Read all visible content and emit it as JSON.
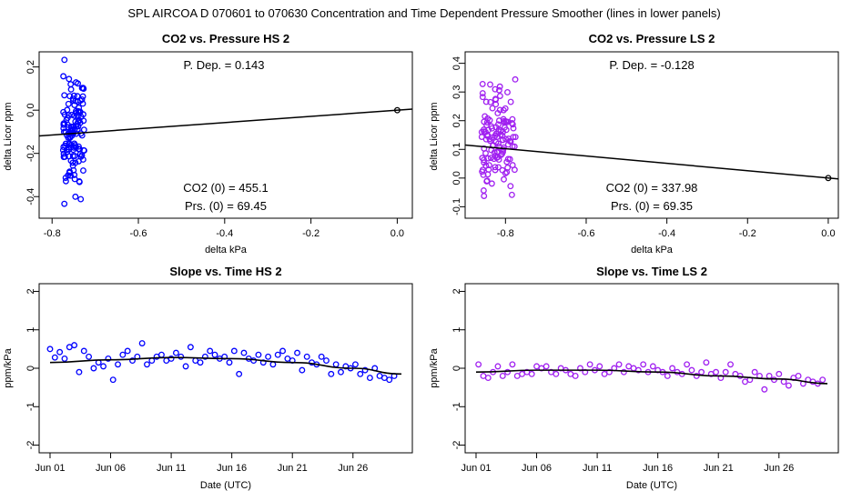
{
  "suptitle": "SPL   AIRCOA D   070601 to 070630   Concentration and Time Dependent Pressure Smoother (lines in lower panels)",
  "colors": {
    "hs": "#0000ff",
    "ls": "#a020f0",
    "line": "#000000"
  },
  "chart_data": [
    {
      "id": "p1",
      "type": "scatter",
      "title": "CO2 vs. Pressure HS 2",
      "xlabel": "delta kPa",
      "ylabel": "delta Licor ppm",
      "xlim": [
        -0.83,
        0.035
      ],
      "ylim": [
        -0.5,
        0.27
      ],
      "xticks": [
        -0.8,
        -0.6,
        -0.4,
        -0.2,
        0.0
      ],
      "xtick_labels": [
        "-0.8",
        "-0.6",
        "-0.4",
        "-0.2",
        "0.0"
      ],
      "yticks": [
        -0.4,
        -0.2,
        0.0,
        0.2
      ],
      "ytick_labels": [
        "-0.4",
        "-0.2",
        "0.0",
        "0.2"
      ],
      "series_color": "hs",
      "cluster": {
        "x_min": -0.775,
        "x_max": -0.725,
        "y_min": -0.47,
        "y_max": 0.25,
        "n": 130,
        "seed": 11
      },
      "origin_point": [
        0.0,
        0.0
      ],
      "fit_line": [
        [
          -0.83,
          -0.119
        ],
        [
          0.035,
          0.005
        ]
      ],
      "annotations": {
        "pdep": "P. Dep. =  0.143",
        "co2": "CO2 (0) =  455.1",
        "prs": "Prs. (0) =  69.45"
      }
    },
    {
      "id": "p2",
      "type": "scatter",
      "title": "CO2 vs. Pressure LS 2",
      "xlabel": "delta kPa",
      "ylabel": "delta Licor ppm",
      "xlim": [
        -0.9,
        0.025
      ],
      "ylim": [
        -0.14,
        0.44
      ],
      "xticks": [
        -0.8,
        -0.6,
        -0.4,
        -0.2,
        0.0
      ],
      "xtick_labels": [
        "-0.8",
        "-0.6",
        "-0.4",
        "-0.2",
        "0.0"
      ],
      "yticks": [
        -0.1,
        0.0,
        0.1,
        0.2,
        0.3,
        0.4
      ],
      "ytick_labels": [
        "-0.1",
        "0.0",
        "0.1",
        "0.2",
        "0.3",
        "0.4"
      ],
      "series_color": "ls",
      "cluster": {
        "x_min": -0.86,
        "x_max": -0.775,
        "y_min": -0.13,
        "y_max": 0.42,
        "n": 130,
        "seed": 23
      },
      "origin_point": [
        0.0,
        0.0
      ],
      "fit_line": [
        [
          -0.9,
          0.115
        ],
        [
          0.025,
          -0.003
        ]
      ],
      "annotations": {
        "pdep": "P. Dep. =  -0.128",
        "co2": "CO2 (0) =  337.98",
        "prs": "Prs. (0) =  69.35"
      }
    },
    {
      "id": "p3",
      "type": "scatter",
      "title": "Slope vs. Time HS 2",
      "xlabel": "Date (UTC)",
      "ylabel": "ppm/kPa",
      "xlim": [
        0.1,
        30.9
      ],
      "ylim": [
        -2.2,
        2.2
      ],
      "xticks": [
        1,
        6,
        11,
        16,
        21,
        26
      ],
      "xtick_labels": [
        "Jun 01",
        "Jun 06",
        "Jun 11",
        "Jun 16",
        "Jun 21",
        "Jun 26"
      ],
      "yticks": [
        -2,
        -1,
        0,
        1,
        2
      ],
      "ytick_labels": [
        "-2",
        "-1",
        "0",
        "1",
        "2"
      ],
      "series_color": "hs",
      "x": [
        1.0,
        1.4,
        1.8,
        2.2,
        2.6,
        3.0,
        3.4,
        3.8,
        4.2,
        4.6,
        5.0,
        5.4,
        5.8,
        6.2,
        6.6,
        7.0,
        7.4,
        7.8,
        8.2,
        8.6,
        9.0,
        9.4,
        9.8,
        10.2,
        10.6,
        11.0,
        11.4,
        11.8,
        12.2,
        12.6,
        13.0,
        13.4,
        13.8,
        14.2,
        14.6,
        15.0,
        15.4,
        15.8,
        16.2,
        16.6,
        17.0,
        17.4,
        17.8,
        18.2,
        18.6,
        19.0,
        19.4,
        19.8,
        20.2,
        20.6,
        21.0,
        21.4,
        21.8,
        22.2,
        22.6,
        23.0,
        23.4,
        23.8,
        24.2,
        24.6,
        25.0,
        25.4,
        25.8,
        26.2,
        26.6,
        27.0,
        27.4,
        27.8,
        28.2,
        28.6,
        29.0,
        29.4
      ],
      "y": [
        0.5,
        0.28,
        0.42,
        0.25,
        0.55,
        0.6,
        -0.1,
        0.45,
        0.3,
        0.0,
        0.15,
        0.05,
        0.25,
        -0.3,
        0.1,
        0.35,
        0.45,
        0.2,
        0.3,
        0.65,
        0.1,
        0.2,
        0.3,
        0.35,
        0.2,
        0.25,
        0.4,
        0.3,
        0.05,
        0.55,
        0.2,
        0.15,
        0.3,
        0.45,
        0.35,
        0.25,
        0.3,
        0.15,
        0.45,
        -0.15,
        0.4,
        0.25,
        0.2,
        0.35,
        0.15,
        0.3,
        0.1,
        0.35,
        0.45,
        0.25,
        0.2,
        0.4,
        -0.05,
        0.3,
        0.15,
        0.1,
        0.3,
        0.2,
        -0.15,
        0.1,
        -0.1,
        0.05,
        0.0,
        0.1,
        -0.15,
        -0.05,
        -0.25,
        0.0,
        -0.2,
        -0.25,
        -0.3,
        -0.2
      ],
      "smoother": {
        "x": [
          1,
          6,
          11,
          16,
          21,
          26,
          30
        ],
        "y": [
          0.15,
          0.22,
          0.28,
          0.25,
          0.15,
          0.0,
          -0.15
        ]
      }
    },
    {
      "id": "p4",
      "type": "scatter",
      "title": "Slope vs. Time LS 2",
      "xlabel": "Date (UTC)",
      "ylabel": "ppm/kPa",
      "xlim": [
        0.1,
        30.9
      ],
      "ylim": [
        -2.2,
        2.2
      ],
      "xticks": [
        1,
        6,
        11,
        16,
        21,
        26
      ],
      "xtick_labels": [
        "Jun 01",
        "Jun 06",
        "Jun 11",
        "Jun 16",
        "Jun 21",
        "Jun 26"
      ],
      "yticks": [
        -2,
        -1,
        0,
        1,
        2
      ],
      "ytick_labels": [
        "-2",
        "-1",
        "0",
        "1",
        "2"
      ],
      "series_color": "ls",
      "x": [
        1.2,
        1.6,
        2.0,
        2.4,
        2.8,
        3.2,
        3.6,
        4.0,
        4.4,
        4.8,
        5.2,
        5.6,
        6.0,
        6.4,
        6.8,
        7.2,
        7.6,
        8.0,
        8.4,
        8.8,
        9.2,
        9.6,
        10.0,
        10.4,
        10.8,
        11.2,
        11.6,
        12.0,
        12.4,
        12.8,
        13.2,
        13.6,
        14.0,
        14.4,
        14.8,
        15.2,
        15.6,
        16.0,
        16.4,
        16.8,
        17.2,
        17.6,
        18.0,
        18.4,
        18.8,
        19.2,
        19.6,
        20.0,
        20.4,
        20.8,
        21.2,
        21.6,
        22.0,
        22.4,
        22.8,
        23.2,
        23.6,
        24.0,
        24.4,
        24.8,
        25.2,
        25.6,
        26.0,
        26.4,
        26.8,
        27.2,
        27.6,
        28.0,
        28.4,
        28.8,
        29.2,
        29.6
      ],
      "y": [
        0.1,
        -0.2,
        -0.25,
        -0.1,
        0.05,
        -0.2,
        -0.1,
        0.1,
        -0.2,
        -0.15,
        -0.1,
        -0.15,
        0.05,
        0.0,
        0.05,
        -0.1,
        -0.15,
        0.0,
        -0.05,
        -0.15,
        -0.2,
        0.0,
        -0.1,
        0.1,
        -0.05,
        0.05,
        -0.15,
        -0.1,
        0.0,
        0.1,
        -0.1,
        0.05,
        0.0,
        -0.05,
        0.1,
        -0.1,
        0.05,
        -0.05,
        -0.1,
        -0.2,
        0.0,
        -0.1,
        -0.15,
        0.1,
        -0.05,
        -0.2,
        -0.1,
        0.15,
        -0.15,
        -0.1,
        -0.25,
        -0.1,
        0.1,
        -0.15,
        -0.2,
        -0.35,
        -0.3,
        -0.1,
        -0.2,
        -0.55,
        -0.2,
        -0.3,
        -0.15,
        -0.35,
        -0.45,
        -0.25,
        -0.2,
        -0.4,
        -0.3,
        -0.35,
        -0.4,
        -0.3
      ],
      "smoother": {
        "x": [
          1,
          6,
          11,
          16,
          21,
          26,
          30
        ],
        "y": [
          -0.1,
          -0.05,
          -0.05,
          -0.1,
          -0.2,
          -0.28,
          -0.4
        ]
      }
    }
  ]
}
